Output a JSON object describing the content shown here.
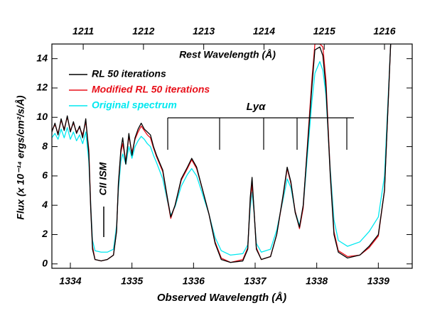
{
  "chart_data": {
    "type": "line",
    "xlabel": "Observed Wavelength (Å)",
    "x2label": "Rest Wavelength (Å)",
    "ylabel": "Flux (x 10⁻¹⁴ ergs/cm²/s/Å)",
    "annotations": [
      "CII ISM",
      "Lyα"
    ],
    "xlim": [
      1333.7,
      1339.55
    ],
    "xticks": [
      1334,
      1335,
      1336,
      1337,
      1338,
      1339
    ],
    "x2lim": [
      1210.48,
      1216.46
    ],
    "x2ticks": [
      1211,
      1212,
      1213,
      1214,
      1215,
      1216
    ],
    "ylim": [
      -0.3,
      15
    ],
    "yticks": [
      0,
      2,
      4,
      6,
      8,
      10,
      12,
      14
    ],
    "legend": "upper left",
    "x": [
      1333.7,
      1333.75,
      1333.8,
      1333.85,
      1333.9,
      1333.95,
      1334.0,
      1334.05,
      1334.1,
      1334.15,
      1334.2,
      1334.25,
      1334.3,
      1334.33,
      1334.36,
      1334.4,
      1334.5,
      1334.6,
      1334.7,
      1334.75,
      1334.78,
      1334.82,
      1334.85,
      1334.9,
      1334.95,
      1335.0,
      1335.05,
      1335.1,
      1335.15,
      1335.2,
      1335.25,
      1335.3,
      1335.35,
      1335.4,
      1335.5,
      1335.58,
      1335.63,
      1335.7,
      1335.8,
      1335.9,
      1335.97,
      1336.05,
      1336.15,
      1336.25,
      1336.35,
      1336.45,
      1336.6,
      1336.8,
      1336.88,
      1336.92,
      1336.95,
      1336.98,
      1337.02,
      1337.1,
      1337.25,
      1337.35,
      1337.45,
      1337.52,
      1337.58,
      1337.65,
      1337.72,
      1337.78,
      1337.85,
      1337.92,
      1337.97,
      1338.05,
      1338.1,
      1338.15,
      1338.22,
      1338.28,
      1338.35,
      1338.5,
      1338.7,
      1338.85,
      1339.0,
      1339.1,
      1339.15,
      1339.2
    ],
    "series": [
      {
        "name": "RL 50 iterations",
        "color": "#000000",
        "values": [
          9.0,
          9.6,
          8.8,
          9.9,
          9.1,
          10.1,
          9.0,
          9.7,
          8.9,
          9.4,
          8.6,
          9.9,
          7.5,
          3.8,
          1.0,
          0.3,
          0.2,
          0.3,
          0.6,
          2.2,
          5.5,
          7.8,
          8.6,
          6.8,
          8.9,
          7.4,
          8.6,
          9.2,
          9.6,
          9.2,
          9.0,
          8.8,
          8.0,
          7.4,
          6.4,
          4.4,
          3.2,
          4.0,
          5.8,
          6.6,
          7.2,
          6.6,
          5.0,
          3.4,
          1.4,
          0.3,
          0.1,
          0.2,
          1.0,
          4.5,
          5.9,
          3.8,
          1.0,
          0.3,
          0.5,
          2.0,
          4.6,
          6.6,
          5.6,
          3.5,
          2.5,
          4.0,
          8.0,
          12.0,
          14.6,
          14.8,
          14.2,
          12.0,
          6.0,
          2.0,
          0.8,
          0.4,
          0.6,
          1.2,
          2.0,
          5.0,
          10.0,
          15.0
        ]
      },
      {
        "name": "Modified RL 50 iterations",
        "color": "#e8101a",
        "values": [
          9.1,
          9.5,
          8.9,
          9.8,
          9.2,
          10.0,
          9.1,
          9.6,
          9.0,
          9.3,
          8.8,
          9.7,
          7.8,
          4.0,
          1.2,
          0.3,
          0.2,
          0.3,
          0.6,
          2.3,
          5.4,
          7.6,
          8.2,
          7.0,
          8.7,
          7.6,
          8.5,
          9.0,
          9.4,
          9.1,
          8.8,
          8.6,
          7.9,
          7.3,
          6.3,
          4.3,
          3.1,
          4.0,
          5.7,
          6.5,
          7.1,
          6.5,
          5.0,
          3.4,
          1.5,
          0.4,
          0.1,
          0.3,
          1.1,
          4.2,
          5.4,
          3.8,
          1.1,
          0.3,
          0.5,
          2.0,
          4.5,
          6.5,
          5.5,
          3.6,
          2.4,
          3.8,
          8.2,
          12.5,
          15.0,
          15.0,
          14.8,
          12.5,
          6.2,
          2.2,
          0.9,
          0.5,
          0.6,
          1.1,
          1.9,
          5.0,
          10.0,
          15.0
        ]
      },
      {
        "name": "Original spectrum",
        "color": "#00e8f0",
        "values": [
          8.6,
          8.9,
          8.5,
          9.2,
          8.6,
          9.3,
          8.5,
          9.0,
          8.4,
          8.8,
          8.2,
          9.0,
          7.0,
          4.2,
          1.6,
          0.9,
          0.8,
          0.8,
          1.0,
          2.6,
          5.0,
          7.0,
          7.5,
          6.8,
          8.0,
          7.2,
          8.0,
          8.4,
          8.7,
          8.5,
          8.2,
          8.0,
          7.4,
          6.9,
          5.8,
          4.2,
          3.3,
          3.9,
          5.3,
          6.1,
          6.5,
          6.0,
          4.7,
          3.4,
          1.8,
          0.9,
          0.6,
          0.7,
          1.3,
          3.8,
          4.9,
          3.6,
          1.4,
          0.8,
          1.0,
          2.3,
          4.3,
          5.8,
          5.2,
          3.6,
          2.6,
          3.8,
          7.5,
          11.0,
          13.0,
          13.8,
          13.2,
          11.5,
          6.5,
          3.0,
          1.6,
          1.2,
          1.5,
          2.2,
          3.2,
          6.0,
          10.5,
          15.0
        ]
      }
    ]
  }
}
